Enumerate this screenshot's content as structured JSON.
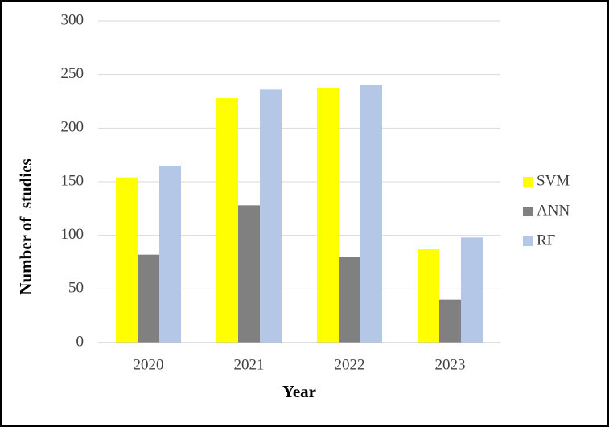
{
  "chart_data": {
    "type": "bar",
    "categories": [
      "2020",
      "2021",
      "2022",
      "2023"
    ],
    "series": [
      {
        "name": "SVM",
        "color": "#ffff00",
        "values": [
          154,
          228,
          237,
          87
        ]
      },
      {
        "name": "ANN",
        "color": "#808080",
        "values": [
          82,
          128,
          80,
          40
        ]
      },
      {
        "name": "RF",
        "color": "#b4c7e7",
        "values": [
          165,
          236,
          240,
          98
        ]
      }
    ],
    "ylim": [
      0,
      300
    ],
    "yticks": [
      0,
      50,
      100,
      150,
      200,
      250,
      300
    ],
    "grid": true,
    "x_label": "Year",
    "y_label": "Number of  studies",
    "legend": "right"
  }
}
